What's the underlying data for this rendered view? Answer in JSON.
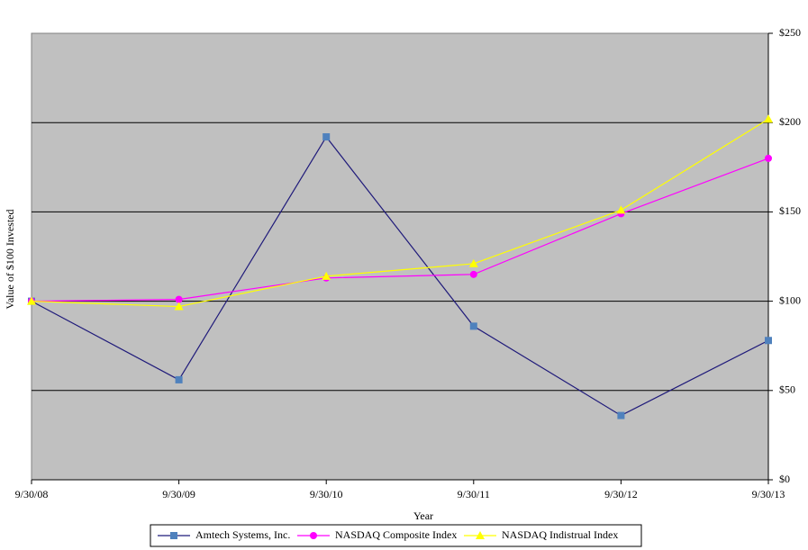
{
  "chart_data": {
    "type": "line",
    "y_label": "Value of $100 Invested",
    "x_label": "Year",
    "categories": [
      "9/30/08",
      "9/30/09",
      "9/30/10",
      "9/30/11",
      "9/30/12",
      "9/30/13"
    ],
    "series": [
      {
        "name": "Amtech Systems, Inc.",
        "color": "#1f1a7a",
        "marker_color": "#4f81bd",
        "values": [
          100,
          56,
          192,
          86,
          36,
          78
        ]
      },
      {
        "name": "NASDAQ Composite Index",
        "color": "#ff00ff",
        "marker_color": "#ff00ff",
        "values": [
          100,
          101,
          113,
          115,
          149,
          180
        ]
      },
      {
        "name": "NASDAQ Indistrual Index",
        "color": "#ffff00",
        "marker_color": "#ffff00",
        "values": [
          100,
          97,
          114,
          121,
          151,
          202
        ]
      }
    ],
    "ylim": [
      0,
      250
    ],
    "yticks": [
      {
        "value": 0,
        "label": "$0"
      },
      {
        "value": 50,
        "label": "$50"
      },
      {
        "value": 100,
        "label": "$100"
      },
      {
        "value": 150,
        "label": "$150"
      },
      {
        "value": 200,
        "label": "$200"
      },
      {
        "value": 250,
        "label": "$250"
      }
    ],
    "grid": true,
    "plot_background": "#c0c0c0",
    "legend": "bottom"
  }
}
